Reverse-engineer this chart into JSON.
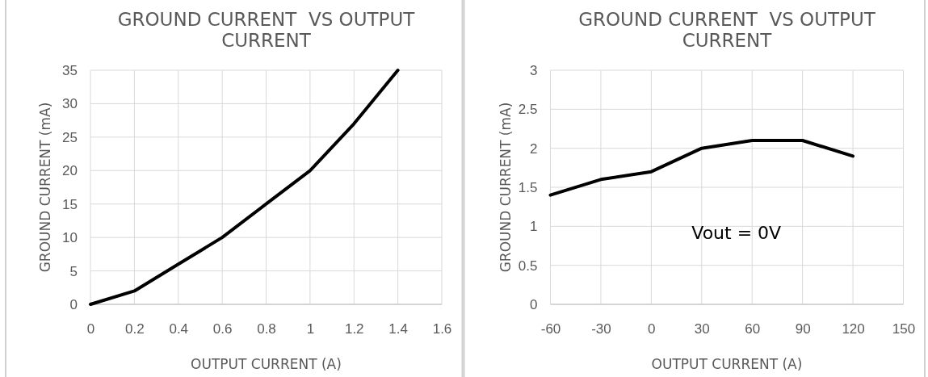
{
  "chart_data": [
    {
      "type": "line",
      "title": "GROUND CURRENT  VS OUTPUT CURRENT",
      "xlabel": "OUTPUT CURRENT (A)",
      "ylabel": "GROUND CURRENT (mA)",
      "x": [
        0,
        0.2,
        0.4,
        0.6,
        0.8,
        1,
        1.2,
        1.4
      ],
      "series": [
        {
          "color": "#000000",
          "values": [
            0,
            2,
            6,
            10,
            15,
            20,
            27,
            35
          ]
        }
      ],
      "xlim": [
        0,
        1.6
      ],
      "xticks": [
        0,
        0.2,
        0.4,
        0.6,
        0.8,
        1,
        1.2,
        1.4,
        1.6
      ],
      "ylim": [
        0,
        35
      ],
      "yticks": [
        0,
        5,
        10,
        15,
        20,
        25,
        30,
        35
      ],
      "grid": true
    },
    {
      "type": "line",
      "title": "GROUND CURRENT  VS OUTPUT CURRENT",
      "xlabel": "OUTPUT CURRENT (A)",
      "ylabel": "GROUND CURRENT (mA)",
      "x": [
        -60,
        -30,
        0,
        30,
        60,
        90,
        120
      ],
      "series": [
        {
          "color": "#000000",
          "values": [
            1.4,
            1.6,
            1.7,
            2.0,
            2.1,
            2.1,
            1.9
          ]
        }
      ],
      "xlim": [
        -60,
        150
      ],
      "xticks": [
        -60,
        -30,
        0,
        30,
        60,
        90,
        120,
        150
      ],
      "ylim": [
        0,
        3
      ],
      "yticks": [
        0,
        0.5,
        1,
        1.5,
        2,
        2.5,
        3
      ],
      "grid": true,
      "annotations": [
        "Vout = 0V"
      ]
    }
  ]
}
